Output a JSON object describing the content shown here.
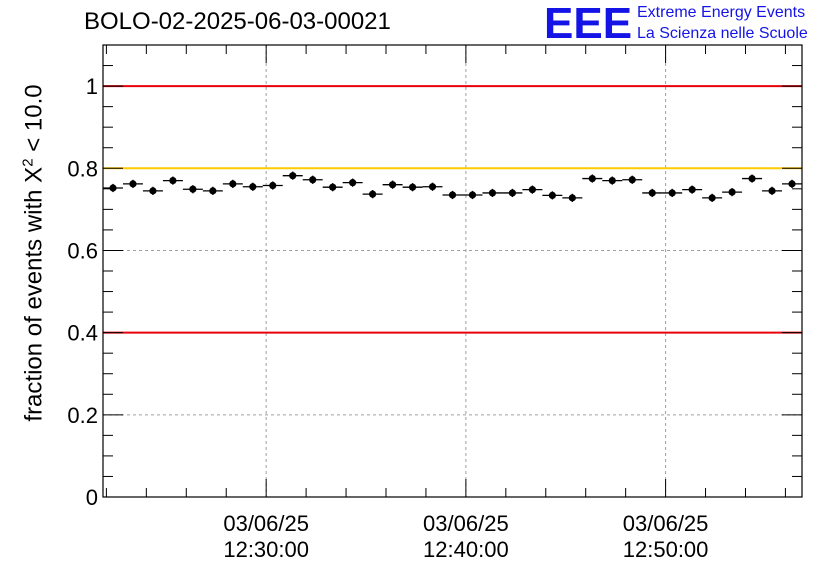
{
  "run_title": "BOLO-02-2025-06-03-00021",
  "logo": {
    "text": "EEE",
    "line1": "Extreme Energy Events",
    "line2": "La Scienza nelle Scuole"
  },
  "colors": {
    "limit_red": "#e8000a",
    "limit_yellow": "#ffcc00",
    "logo_blue": "#1414e6",
    "points": "#000000"
  },
  "chart_data": {
    "type": "scatter",
    "ylabel_prefix": "fraction of events with ",
    "ylabel_symbol": "Χ",
    "ylabel_exponent": "2",
    "ylabel_suffix": " < 10.0",
    "ylim": [
      0,
      1.1
    ],
    "y_ticks": [
      {
        "value": 0,
        "label": "0"
      },
      {
        "value": 0.2,
        "label": "0.2"
      },
      {
        "value": 0.4,
        "label": "0.4"
      },
      {
        "value": 0.6,
        "label": "0.6"
      },
      {
        "value": 0.8,
        "label": "0.8"
      },
      {
        "value": 1,
        "label": "1"
      }
    ],
    "xlim_minutes": [
      0,
      35
    ],
    "x_ticks": [
      {
        "minutes": 8.17,
        "date": "03/06/25",
        "time": "12:30:00"
      },
      {
        "minutes": 18.17,
        "date": "03/06/25",
        "time": "12:40:00"
      },
      {
        "minutes": 28.17,
        "date": "03/06/25",
        "time": "12:50:00"
      }
    ],
    "bin_width_minutes": 1,
    "grid": true,
    "reference_lines": [
      {
        "y": 1.0,
        "color": "red"
      },
      {
        "y": 0.8,
        "color": "yellow"
      },
      {
        "y": 0.4,
        "color": "red"
      }
    ],
    "series": [
      {
        "name": "fraction",
        "x": [
          0.5,
          1.5,
          2.5,
          3.5,
          4.5,
          5.5,
          6.5,
          7.5,
          8.5,
          9.5,
          10.5,
          11.5,
          12.5,
          13.5,
          14.5,
          15.5,
          16.5,
          17.5,
          18.5,
          19.5,
          20.5,
          21.5,
          22.5,
          23.5,
          24.5,
          25.5,
          26.5,
          27.5,
          28.5,
          29.5,
          30.5,
          31.5,
          32.5,
          33.5,
          34.5
        ],
        "values": [
          0.752,
          0.762,
          0.745,
          0.77,
          0.749,
          0.745,
          0.762,
          0.755,
          0.758,
          0.782,
          0.772,
          0.754,
          0.765,
          0.737,
          0.76,
          0.754,
          0.755,
          0.735,
          0.735,
          0.74,
          0.74,
          0.748,
          0.734,
          0.728,
          0.775,
          0.77,
          0.772,
          0.74,
          0.74,
          0.748,
          0.728,
          0.742,
          0.775,
          0.745,
          0.762
        ],
        "errors": [
          0.01,
          0.01,
          0.01,
          0.01,
          0.01,
          0.01,
          0.01,
          0.01,
          0.01,
          0.01,
          0.01,
          0.01,
          0.01,
          0.01,
          0.01,
          0.01,
          0.01,
          0.01,
          0.01,
          0.01,
          0.01,
          0.01,
          0.01,
          0.01,
          0.01,
          0.01,
          0.01,
          0.01,
          0.01,
          0.01,
          0.01,
          0.01,
          0.01,
          0.01,
          0.01
        ]
      }
    ]
  }
}
